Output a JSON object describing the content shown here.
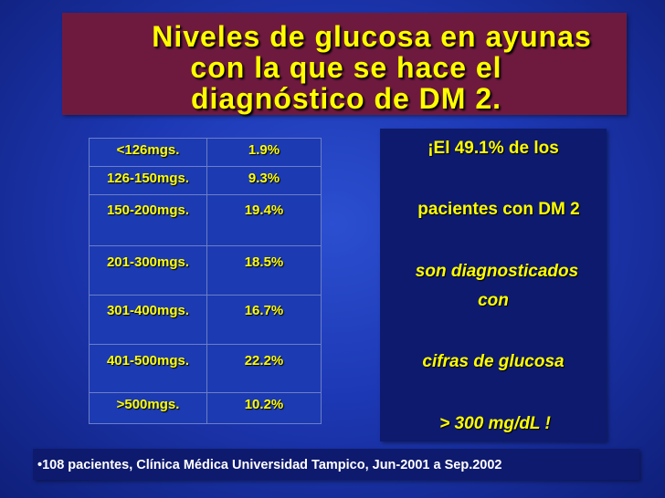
{
  "title": {
    "line1": "Niveles de glucosa en ayunas",
    "line2": "con la que se hace el",
    "line3": "diagnóstico de DM 2."
  },
  "table": {
    "rows": [
      {
        "range": "<126mgs.",
        "percent": "1.9%"
      },
      {
        "range": "126-150mgs.",
        "percent": "9.3%"
      },
      {
        "range": "150-200mgs.",
        "percent": "19.4%"
      },
      {
        "range": "201-300mgs.",
        "percent": "18.5%"
      },
      {
        "range": "301-400mgs.",
        "percent": "16.7%"
      },
      {
        "range": "401-500mgs.",
        "percent": "22.2%"
      },
      {
        "range": ">500mgs.",
        "percent": "10.2%"
      }
    ]
  },
  "message": {
    "line1": "¡El 49.1% de los",
    "line2": "pacientes con DM 2",
    "line3": "son diagnosticados",
    "line4": "con",
    "line5": "cifras de glucosa",
    "line6": "> 300 mg/dL !"
  },
  "footer": {
    "text": "•108 pacientes,  Clínica Médica Universidad Tampico, Jun-2001 a Sep.2002"
  },
  "colors": {
    "title_background": "#6e1a3f",
    "text_accent": "#ffff00",
    "background": "#1d38b4",
    "panel_background": "#0e1a6e"
  }
}
